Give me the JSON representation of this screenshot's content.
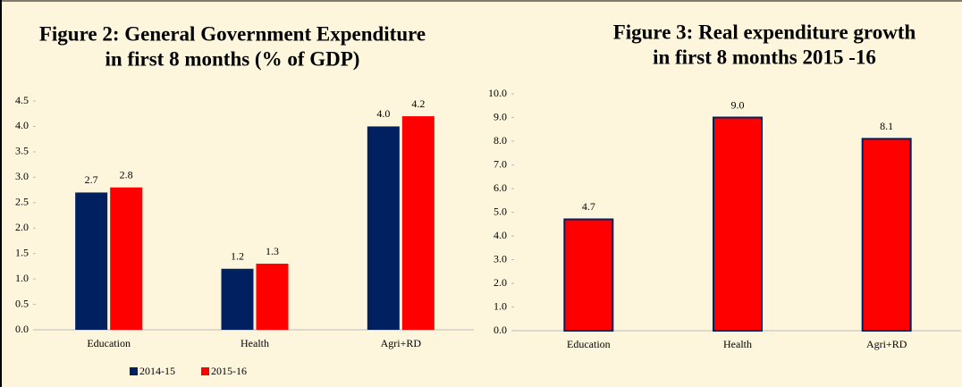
{
  "chart_data": [
    {
      "type": "bar",
      "title": [
        "Figure 2: General Government Expenditure",
        "in first 8 months (% of GDP)"
      ],
      "categories": [
        "Education",
        "Health",
        "Agri+RD"
      ],
      "series": [
        {
          "name": "2014-15",
          "color": "#002060",
          "values": [
            2.7,
            1.2,
            4.0
          ],
          "value_labels": [
            "2.7",
            "1.2",
            "4.0"
          ]
        },
        {
          "name": "2015-16",
          "color": "#ff0000",
          "values": [
            2.8,
            1.3,
            4.2
          ],
          "value_labels": [
            "2.8",
            "1.3",
            "4.2"
          ]
        }
      ],
      "ylim": [
        0,
        4.5
      ],
      "yticks": [
        {
          "value": 0,
          "label": "0.0"
        },
        0.5,
        {
          "value": 1,
          "label": "1.0"
        },
        1.5,
        {
          "value": 2,
          "label": "2.0"
        },
        2.5,
        {
          "value": 3,
          "label": "3.0"
        },
        3.5,
        {
          "value": 4,
          "label": "4.0"
        },
        4.5
      ],
      "legend": "bottom"
    },
    {
      "type": "bar",
      "title": [
        "Figure 3: Real expenditure growth",
        "in first 8 months 2015 -16"
      ],
      "categories": [
        "Education",
        "Health",
        "Agri+RD"
      ],
      "series": [
        {
          "color": "#ff0000",
          "edge": "#002060",
          "values": [
            4.7,
            9.0,
            8.1
          ],
          "value_labels": [
            "4.7",
            "9.0",
            "8.1"
          ]
        }
      ],
      "ylim": [
        0,
        10
      ],
      "yticks": [
        {
          "value": 0,
          "label": "0.0"
        },
        {
          "value": 1,
          "label": "1.0"
        },
        {
          "value": 2,
          "label": "2.0"
        },
        {
          "value": 3,
          "label": "3.0"
        },
        {
          "value": 4,
          "label": "4.0"
        },
        {
          "value": 5,
          "label": "5.0"
        },
        {
          "value": 6,
          "label": "6.0"
        },
        {
          "value": 7,
          "label": "7.0"
        },
        {
          "value": 8,
          "label": "8.0"
        },
        {
          "value": 9,
          "label": "9.0"
        },
        {
          "value": 10,
          "label": "10.0"
        }
      ]
    }
  ]
}
